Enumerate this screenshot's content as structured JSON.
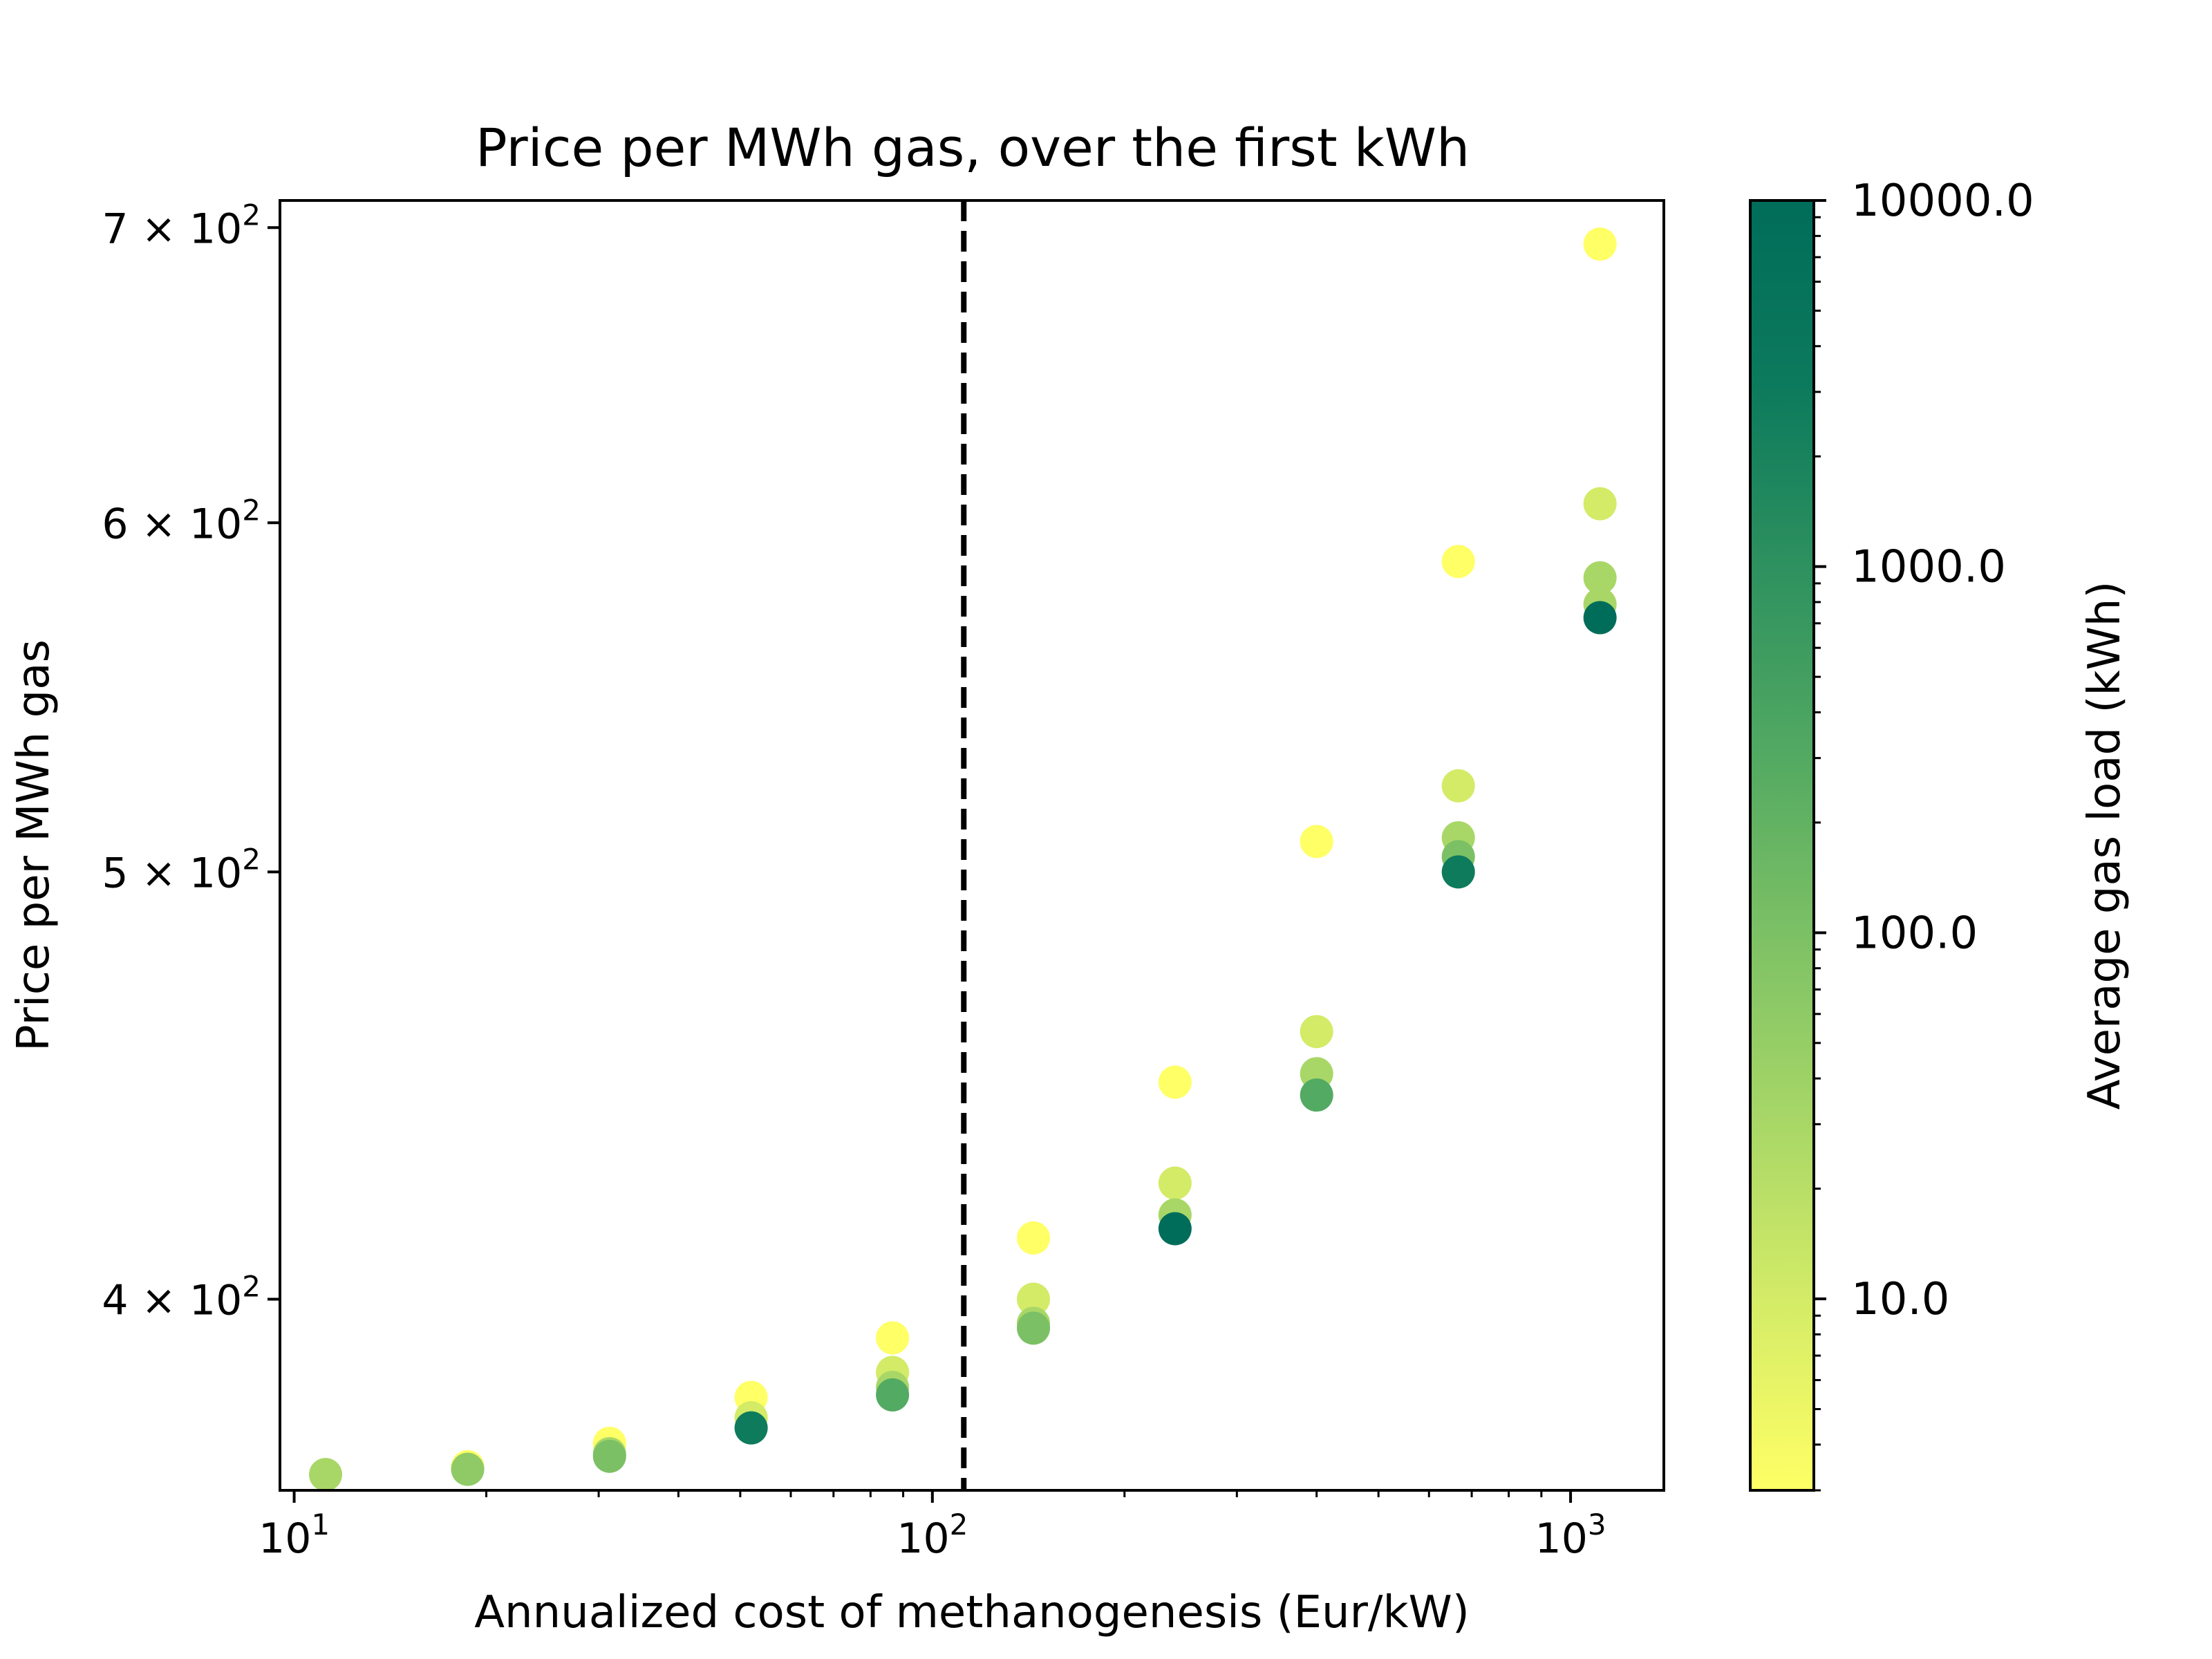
{
  "chart_data": {
    "type": "scatter",
    "title": "Price per MWh gas, over the first kWh",
    "xlabel": "Annualized cost of methanogenesis (Eur/kW)",
    "ylabel": "Price per MWh gas",
    "x_scale": "log",
    "y_scale": "log",
    "xlim": [
      9.5,
      1400
    ],
    "ylim": [
      362,
      710
    ],
    "x_ticks": [
      {
        "value": 10,
        "base": "10",
        "exp": "1"
      },
      {
        "value": 100,
        "base": "10",
        "exp": "2"
      },
      {
        "value": 1000,
        "base": "10",
        "exp": "3"
      }
    ],
    "y_ticks": [
      {
        "value": 400,
        "mant": "4",
        "base": "10",
        "exp": "2"
      },
      {
        "value": 500,
        "mant": "5",
        "base": "10",
        "exp": "2"
      },
      {
        "value": 600,
        "mant": "6",
        "base": "10",
        "exp": "2"
      },
      {
        "value": 700,
        "mant": "7",
        "base": "10",
        "exp": "2"
      }
    ],
    "reference_line": {
      "x": 112,
      "style": "dashed",
      "color": "#000000"
    },
    "colorbar": {
      "label": "Average gas load (kWh)",
      "scale": "log",
      "range": [
        3,
        10000
      ],
      "ticks": [
        {
          "value": 10,
          "label": "10.0"
        },
        {
          "value": 100,
          "label": "100.0"
        },
        {
          "value": 1000,
          "label": "1000.0"
        },
        {
          "value": 10000,
          "label": "10000.0"
        }
      ],
      "colormap": [
        "#ffff66",
        "#d5ec67",
        "#a8d767",
        "#7dc165",
        "#52a962",
        "#2e915f",
        "#0c7a5c",
        "#006d5a"
      ]
    },
    "points": [
      {
        "x": 11.2,
        "y": 365,
        "load": 30
      },
      {
        "x": 18.7,
        "y": 366.5,
        "load": 3
      },
      {
        "x": 18.7,
        "y": 366,
        "load": 60
      },
      {
        "x": 31.2,
        "y": 371,
        "load": 3
      },
      {
        "x": 31.2,
        "y": 369,
        "load": 30
      },
      {
        "x": 31.2,
        "y": 368.5,
        "load": 100
      },
      {
        "x": 52,
        "y": 380,
        "load": 3
      },
      {
        "x": 52,
        "y": 376,
        "load": 10
      },
      {
        "x": 52,
        "y": 374,
        "load": 3000
      },
      {
        "x": 86.6,
        "y": 392,
        "load": 3
      },
      {
        "x": 86.6,
        "y": 385,
        "load": 10
      },
      {
        "x": 86.6,
        "y": 382,
        "load": 30
      },
      {
        "x": 86.6,
        "y": 380.5,
        "load": 300
      },
      {
        "x": 144,
        "y": 413,
        "load": 3
      },
      {
        "x": 144,
        "y": 400,
        "load": 10
      },
      {
        "x": 144,
        "y": 395,
        "load": 30
      },
      {
        "x": 144,
        "y": 394,
        "load": 100
      },
      {
        "x": 240,
        "y": 448,
        "load": 3
      },
      {
        "x": 240,
        "y": 425,
        "load": 10
      },
      {
        "x": 240,
        "y": 418,
        "load": 30
      },
      {
        "x": 240,
        "y": 415,
        "load": 10000
      },
      {
        "x": 400,
        "y": 508,
        "load": 3
      },
      {
        "x": 400,
        "y": 460,
        "load": 10
      },
      {
        "x": 400,
        "y": 450,
        "load": 30
      },
      {
        "x": 400,
        "y": 445,
        "load": 300
      },
      {
        "x": 667,
        "y": 588,
        "load": 3
      },
      {
        "x": 667,
        "y": 523,
        "load": 10
      },
      {
        "x": 667,
        "y": 509,
        "load": 30
      },
      {
        "x": 667,
        "y": 504,
        "load": 100
      },
      {
        "x": 667,
        "y": 500,
        "load": 3000
      },
      {
        "x": 1112,
        "y": 694,
        "load": 3
      },
      {
        "x": 1112,
        "y": 606,
        "load": 10
      },
      {
        "x": 1112,
        "y": 583,
        "load": 30
      },
      {
        "x": 1112,
        "y": 575,
        "load": 30
      },
      {
        "x": 1112,
        "y": 571,
        "load": 10000
      }
    ]
  }
}
